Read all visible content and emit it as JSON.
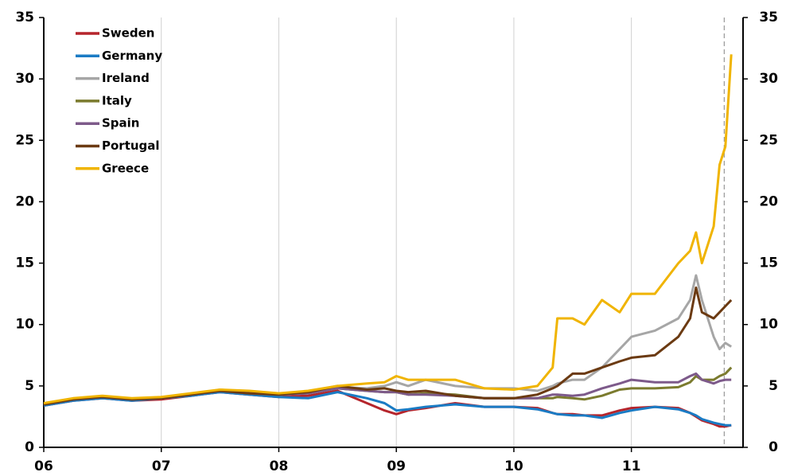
{
  "chart_data": {
    "type": "line",
    "x": [
      6.0,
      6.25,
      6.5,
      6.75,
      7.0,
      7.25,
      7.5,
      7.75,
      8.0,
      8.25,
      8.5,
      8.75,
      8.9,
      9.0,
      9.1,
      9.25,
      9.5,
      9.75,
      10.0,
      10.2,
      10.33,
      10.37,
      10.5,
      10.6,
      10.75,
      10.9,
      11.0,
      11.2,
      11.4,
      11.5,
      11.55,
      11.6,
      11.7,
      11.75,
      11.8,
      11.85
    ],
    "series": [
      {
        "name": "Sweden",
        "color": "#b5252c",
        "values": [
          3.4,
          3.8,
          4.0,
          3.8,
          3.9,
          4.2,
          4.5,
          4.3,
          4.1,
          4.2,
          4.6,
          3.6,
          3.0,
          2.7,
          3.0,
          3.2,
          3.6,
          3.3,
          3.3,
          3.2,
          2.8,
          2.7,
          2.7,
          2.6,
          2.6,
          3.0,
          3.2,
          3.3,
          3.2,
          2.8,
          2.5,
          2.2,
          1.9,
          1.7,
          1.7,
          1.8
        ]
      },
      {
        "name": "Germany",
        "color": "#1a7bc4",
        "values": [
          3.4,
          3.8,
          4.0,
          3.8,
          4.0,
          4.2,
          4.5,
          4.3,
          4.1,
          4.0,
          4.5,
          4.0,
          3.6,
          3.0,
          3.1,
          3.3,
          3.5,
          3.3,
          3.3,
          3.1,
          2.8,
          2.7,
          2.6,
          2.6,
          2.4,
          2.8,
          3.0,
          3.3,
          3.1,
          2.8,
          2.6,
          2.3,
          2.0,
          1.9,
          1.8,
          1.8
        ]
      },
      {
        "name": "Ireland",
        "color": "#a6a6a6",
        "values": [
          3.5,
          3.9,
          4.1,
          3.9,
          4.0,
          4.3,
          4.7,
          4.5,
          4.3,
          4.5,
          4.9,
          4.8,
          5.0,
          5.3,
          5.0,
          5.5,
          5.0,
          4.8,
          4.8,
          4.6,
          5.0,
          5.2,
          5.5,
          5.5,
          6.5,
          8.0,
          9.0,
          9.5,
          10.5,
          12.0,
          14.0,
          12.0,
          9.0,
          8.0,
          8.5,
          8.2
        ]
      },
      {
        "name": "Italy",
        "color": "#7b7b2e",
        "values": [
          3.5,
          3.9,
          4.1,
          3.9,
          4.0,
          4.3,
          4.6,
          4.4,
          4.3,
          4.4,
          4.8,
          4.6,
          4.5,
          4.5,
          4.3,
          4.4,
          4.3,
          4.0,
          4.0,
          4.0,
          4.0,
          4.1,
          4.0,
          3.9,
          4.2,
          4.7,
          4.8,
          4.8,
          4.9,
          5.3,
          5.8,
          5.5,
          5.5,
          5.8,
          6.0,
          6.5
        ]
      },
      {
        "name": "Spain",
        "color": "#7d5a8a",
        "values": [
          3.5,
          3.9,
          4.1,
          3.9,
          4.0,
          4.3,
          4.6,
          4.4,
          4.3,
          4.4,
          4.8,
          4.6,
          4.5,
          4.5,
          4.3,
          4.3,
          4.2,
          4.0,
          4.0,
          4.0,
          4.3,
          4.3,
          4.2,
          4.3,
          4.8,
          5.2,
          5.5,
          5.3,
          5.3,
          5.8,
          6.0,
          5.5,
          5.2,
          5.4,
          5.5,
          5.5
        ]
      },
      {
        "name": "Portugal",
        "color": "#6b3a12",
        "values": [
          3.5,
          3.9,
          4.1,
          3.9,
          4.0,
          4.3,
          4.6,
          4.4,
          4.3,
          4.5,
          5.0,
          4.7,
          4.8,
          4.6,
          4.5,
          4.6,
          4.2,
          4.0,
          4.0,
          4.3,
          4.8,
          5.0,
          6.0,
          6.0,
          6.5,
          7.0,
          7.3,
          7.5,
          9.0,
          10.5,
          13.0,
          11.0,
          10.5,
          11.0,
          11.5,
          12.0
        ]
      },
      {
        "name": "Greece",
        "color": "#f0b400",
        "values": [
          3.6,
          4.0,
          4.2,
          4.0,
          4.1,
          4.4,
          4.7,
          4.6,
          4.4,
          4.6,
          5.0,
          5.2,
          5.3,
          5.8,
          5.5,
          5.5,
          5.5,
          4.8,
          4.7,
          5.0,
          6.5,
          10.5,
          10.5,
          10.0,
          12.0,
          11.0,
          12.5,
          12.5,
          15.0,
          16.0,
          17.5,
          15.0,
          18.0,
          23.0,
          24.5,
          32.0
        ]
      }
    ],
    "xlim": [
      6,
      11.95
    ],
    "xticks": [
      {
        "value": 6,
        "label": "06"
      },
      {
        "value": 7,
        "label": "07"
      },
      {
        "value": 8,
        "label": "08"
      },
      {
        "value": 9,
        "label": "09"
      },
      {
        "value": 10,
        "label": "10"
      },
      {
        "value": 11,
        "label": "11"
      }
    ],
    "ylim": [
      0,
      35
    ],
    "yticks": [
      0,
      5,
      10,
      15,
      20,
      25,
      30,
      35
    ],
    "y2lim": [
      0,
      35
    ],
    "y2ticks": [
      0,
      5,
      10,
      15,
      20,
      25,
      30,
      35
    ],
    "vline": 11.79,
    "grid": true,
    "legend": "upper-left"
  }
}
